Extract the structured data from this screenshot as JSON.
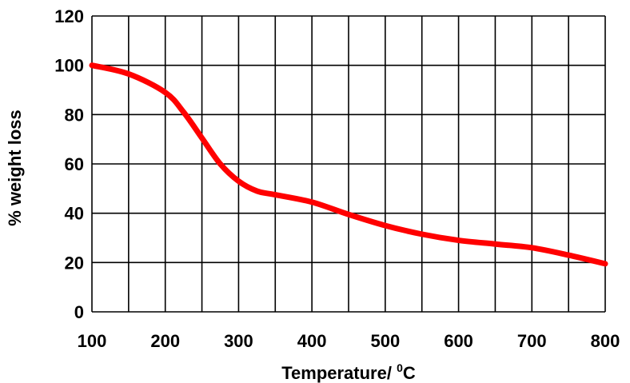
{
  "chart_data": {
    "type": "line",
    "xlabel": "Temperature/ ",
    "xlabel_superscript": "0",
    "xlabel_unit": "C",
    "ylabel": "% weight loss",
    "xlim": [
      100,
      800
    ],
    "ylim": [
      0,
      120
    ],
    "x_ticks": [
      100,
      200,
      300,
      400,
      500,
      600,
      700,
      800
    ],
    "y_ticks": [
      0,
      20,
      40,
      60,
      80,
      100,
      120
    ],
    "x_minor_gridlines": [
      150,
      250,
      350,
      450,
      550,
      650,
      750
    ],
    "grid": true,
    "series": [
      {
        "color": "#ff0000",
        "x": [
          100,
          150,
          200,
          225,
          250,
          275,
          300,
          325,
          350,
          400,
          450,
          500,
          550,
          600,
          650,
          700,
          750,
          800
        ],
        "y": [
          100,
          96.5,
          89,
          81,
          70.5,
          60,
          53,
          49,
          47.5,
          44.5,
          39.5,
          35,
          31.5,
          29,
          27.5,
          26,
          23,
          19.5
        ]
      }
    ],
    "colors": {
      "line": "#ff0000",
      "grid": "#000000",
      "text": "#000000"
    }
  }
}
